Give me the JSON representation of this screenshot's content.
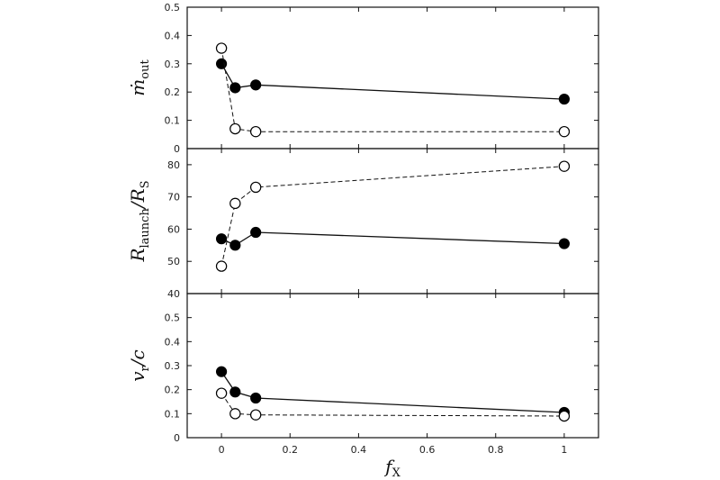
{
  "chart_data": {
    "type": "line",
    "xlabel": {
      "main": "f",
      "sub": "X"
    },
    "xlim": [
      -0.1,
      1.1
    ],
    "xticks": [
      0,
      0.2,
      0.4,
      0.6,
      0.8,
      1
    ],
    "xtick_labels": [
      "0",
      "0.2",
      "0.4",
      "0.6",
      "0.8",
      "1"
    ],
    "x": [
      0,
      0.04,
      0.1,
      1
    ],
    "panels": [
      {
        "ylabel": {
          "main": "ṁ",
          "sub": "out",
          "tail": ""
        },
        "ylim": [
          0,
          0.5
        ],
        "yticks": [
          0,
          0.1,
          0.2,
          0.3,
          0.4,
          0.5
        ],
        "ytick_labels": [
          "0",
          "0.1",
          "0.2",
          "0.3",
          "0.4",
          "0.5"
        ],
        "series": [
          {
            "style": "filled-solid",
            "values": [
              0.3,
              0.215,
              0.225,
              0.175
            ]
          },
          {
            "style": "open-dashed",
            "values": [
              0.355,
              0.07,
              0.06,
              0.06
            ]
          }
        ]
      },
      {
        "ylabel": {
          "main": "R",
          "sub": "launch",
          "tail": "/R",
          "sub2": "S"
        },
        "ylim": [
          40,
          85
        ],
        "yticks": [
          40,
          50,
          60,
          70,
          80
        ],
        "ytick_labels": [
          "40",
          "50",
          "60",
          "70",
          "80"
        ],
        "series": [
          {
            "style": "filled-solid",
            "values": [
              57,
              55,
              59,
              55.5
            ]
          },
          {
            "style": "open-dashed",
            "values": [
              48.5,
              68,
              73,
              79.5
            ]
          }
        ]
      },
      {
        "ylabel": {
          "main": "v",
          "sub": "r",
          "tail": "/c"
        },
        "ylim": [
          0,
          0.6
        ],
        "yticks": [
          0,
          0.1,
          0.2,
          0.3,
          0.4,
          0.5
        ],
        "ytick_labels": [
          "0",
          "0.1",
          "0.2",
          "0.3",
          "0.4",
          "0.5"
        ],
        "series": [
          {
            "style": "filled-solid",
            "values": [
              0.275,
              0.19,
              0.165,
              0.105
            ]
          },
          {
            "style": "open-dashed",
            "values": [
              0.185,
              0.1,
              0.095,
              0.09
            ]
          }
        ]
      }
    ]
  }
}
